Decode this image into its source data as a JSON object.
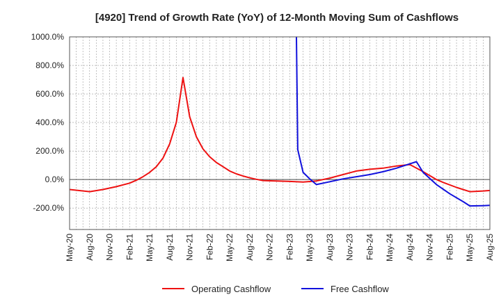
{
  "chart_data": {
    "type": "line",
    "title": "[4920]  Trend of Growth Rate (YoY) of 12-Month Moving Sum of Cashflows",
    "xlabel": "",
    "ylabel": "",
    "ylim": [
      -350,
      1000
    ],
    "yticks": [
      1000,
      800,
      600,
      400,
      200,
      0,
      -200
    ],
    "ytick_labels": [
      "1000.0%",
      "800.0%",
      "600.0%",
      "400.0%",
      "200.0%",
      "0.0%",
      "-200.0%"
    ],
    "xtick_labels": [
      "May-20",
      "Aug-20",
      "Nov-20",
      "Feb-21",
      "May-21",
      "Aug-21",
      "Nov-21",
      "Feb-22",
      "May-22",
      "Aug-22",
      "Nov-22",
      "Feb-23",
      "May-23",
      "Aug-23",
      "Nov-23",
      "Feb-24",
      "May-24",
      "Aug-24",
      "Nov-24",
      "Feb-25",
      "May-25",
      "Aug-25"
    ],
    "x_start": "May-20",
    "x_months": 63,
    "grid": true,
    "legend_position": "bottom",
    "series": [
      {
        "name": "Operating Cashflow",
        "color": "#ee1111",
        "points": [
          [
            0,
            -70
          ],
          [
            3,
            -85
          ],
          [
            5,
            -70
          ],
          [
            7,
            -50
          ],
          [
            9,
            -25
          ],
          [
            10,
            -5
          ],
          [
            11,
            20
          ],
          [
            12,
            50
          ],
          [
            13,
            90
          ],
          [
            14,
            150
          ],
          [
            15,
            250
          ],
          [
            16,
            400
          ],
          [
            17,
            715
          ],
          [
            18,
            440
          ],
          [
            19,
            300
          ],
          [
            20,
            215
          ],
          [
            21,
            160
          ],
          [
            22,
            120
          ],
          [
            23,
            90
          ],
          [
            24,
            60
          ],
          [
            25,
            40
          ],
          [
            26,
            25
          ],
          [
            27,
            12
          ],
          [
            28,
            2
          ],
          [
            29,
            -7
          ],
          [
            31,
            -10
          ],
          [
            33,
            -13
          ],
          [
            35,
            -17
          ],
          [
            37,
            -10
          ],
          [
            39,
            10
          ],
          [
            41,
            35
          ],
          [
            43,
            60
          ],
          [
            45,
            72
          ],
          [
            47,
            80
          ],
          [
            49,
            95
          ],
          [
            51,
            105
          ],
          [
            53,
            55
          ],
          [
            55,
            0
          ],
          [
            56,
            -20
          ],
          [
            58,
            -55
          ],
          [
            60,
            -85
          ],
          [
            62,
            -80
          ],
          [
            66,
            -65
          ],
          [
            69,
            -55
          ]
        ],
        "segments": []
      },
      {
        "name": "Free Cashflow",
        "color": "#1111dd",
        "points": [
          [
            34,
            1000
          ],
          [
            34.2,
            210
          ],
          [
            35,
            50
          ],
          [
            36,
            5
          ],
          [
            37,
            -35
          ],
          [
            39,
            -15
          ],
          [
            41,
            5
          ],
          [
            43,
            20
          ],
          [
            45,
            35
          ],
          [
            47,
            55
          ],
          [
            49,
            80
          ],
          [
            51,
            110
          ],
          [
            52,
            125
          ],
          [
            53,
            50
          ],
          [
            55,
            -35
          ],
          [
            57,
            -100
          ],
          [
            59,
            -155
          ],
          [
            60,
            -185
          ],
          [
            62,
            -183
          ],
          [
            66,
            -175
          ],
          [
            69,
            -165
          ]
        ]
      }
    ]
  }
}
